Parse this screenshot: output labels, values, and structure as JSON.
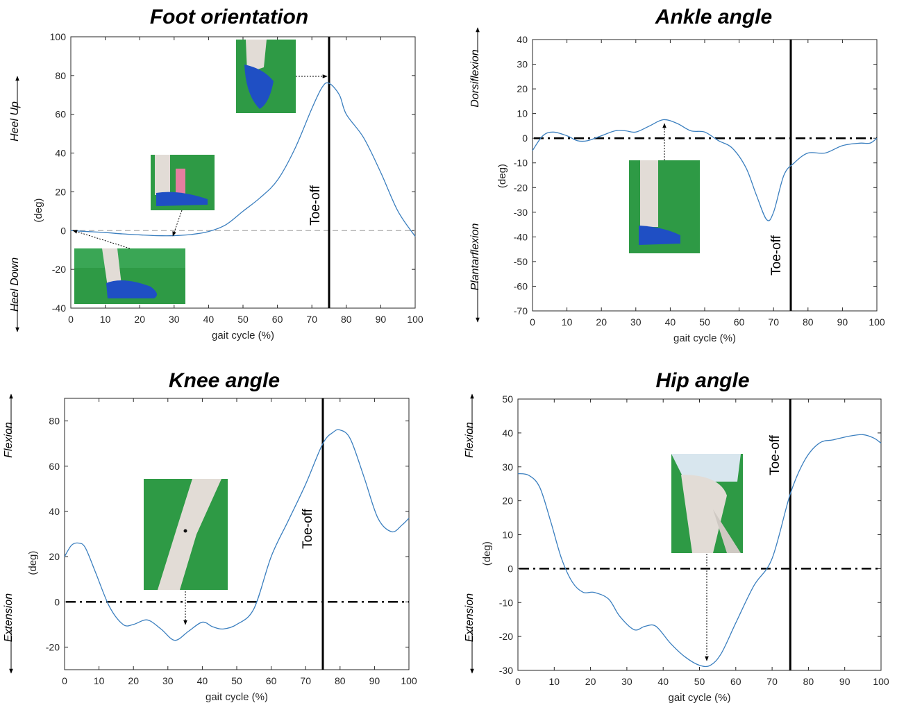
{
  "colors": {
    "curve": "#3B7FBF",
    "photo_green": "#2e9a45",
    "shoe_blue": "#1f4fc4",
    "skin": "#e2dcd6"
  },
  "chart_data": [
    {
      "type": "line",
      "title": "Foot orientation",
      "xlabel": "gait cycle (%)",
      "ylabel": "(deg)",
      "xlim": [
        0,
        100
      ],
      "ylim": [
        -40,
        100
      ],
      "xticks": [
        "0",
        "10",
        "20",
        "30",
        "40",
        "50",
        "60",
        "70",
        "80",
        "90",
        "100"
      ],
      "yticks": [
        "-40",
        "-20",
        "0",
        "20",
        "40",
        "60",
        "80",
        "100"
      ],
      "direction_labels": {
        "positive": "Heel Up",
        "negative": "Heel Down"
      },
      "toe_off": {
        "x": 75,
        "label": "Toe-off"
      },
      "zero_line": "dashed",
      "series": [
        {
          "x": [
            0,
            5,
            10,
            15,
            20,
            25,
            30,
            35,
            40,
            45,
            50,
            55,
            60,
            65,
            70,
            73,
            75,
            78,
            80,
            85,
            90,
            95,
            100
          ],
          "y": [
            0,
            -0.5,
            -1,
            -1.7,
            -2.2,
            -2.6,
            -2.6,
            -2,
            -0.5,
            3,
            10,
            17,
            26,
            42,
            63,
            74,
            76,
            70,
            60,
            48,
            30,
            10,
            -3
          ]
        }
      ]
    },
    {
      "type": "line",
      "title": "Ankle angle",
      "xlabel": "gait cycle (%)",
      "ylabel": "(deg)",
      "xlim": [
        0,
        100
      ],
      "ylim": [
        -70,
        40
      ],
      "xticks": [
        "0",
        "10",
        "20",
        "30",
        "40",
        "50",
        "60",
        "70",
        "80",
        "90",
        "100"
      ],
      "yticks": [
        "-70",
        "-60",
        "-50",
        "-40",
        "-30",
        "-20",
        "-10",
        "0",
        "10",
        "20",
        "30",
        "40"
      ],
      "direction_labels": {
        "positive": "Dorsiflexion",
        "negative": "Plantarflexion"
      },
      "toe_off": {
        "x": 75,
        "label": "Toe-off"
      },
      "zero_line": "dashdot",
      "series": [
        {
          "x": [
            0,
            3,
            6,
            10,
            13,
            16,
            20,
            24,
            27,
            30,
            34,
            38,
            42,
            46,
            50,
            54,
            58,
            62,
            65,
            68,
            70,
            73,
            76,
            80,
            85,
            90,
            95,
            98,
            100
          ],
          "y": [
            -5,
            1,
            2.5,
            1,
            -1,
            -1,
            1,
            3,
            3,
            2.5,
            5,
            7.5,
            6,
            3,
            2.5,
            -1,
            -4,
            -12,
            -23,
            -33,
            -30,
            -15,
            -10,
            -6,
            -6,
            -3,
            -2,
            -2,
            0
          ]
        }
      ]
    },
    {
      "type": "line",
      "title": "Knee angle",
      "xlabel": "gait cycle (%)",
      "ylabel": "(deg)",
      "xlim": [
        0,
        100
      ],
      "ylim": [
        -30,
        90
      ],
      "xticks": [
        "0",
        "10",
        "20",
        "30",
        "40",
        "50",
        "60",
        "70",
        "80",
        "90",
        "100"
      ],
      "yticks": [
        "-20",
        "0",
        "20",
        "40",
        "60",
        "80"
      ],
      "direction_labels": {
        "positive": "Flexion",
        "negative": "Extension"
      },
      "toe_off": {
        "x": 75,
        "label": "Toe-off"
      },
      "zero_line": "dashdot",
      "series": [
        {
          "x": [
            0,
            2,
            4,
            6,
            9,
            13,
            17,
            20,
            24,
            28,
            32,
            36,
            40,
            43,
            46,
            50,
            55,
            60,
            65,
            70,
            75,
            78,
            80,
            83,
            87,
            91,
            95,
            98,
            100
          ],
          "y": [
            20,
            25,
            26,
            24,
            13,
            -2,
            -10,
            -10,
            -8,
            -12,
            -17,
            -13,
            -9,
            -11,
            -12,
            -10,
            -3,
            20,
            36,
            52,
            70,
            75,
            76,
            72,
            55,
            37,
            31,
            34,
            37
          ]
        }
      ]
    },
    {
      "type": "line",
      "title": "Hip angle",
      "xlabel": "gait cycle (%)",
      "ylabel": "(deg)",
      "xlim": [
        0,
        100
      ],
      "ylim": [
        -30,
        50
      ],
      "xticks": [
        "0",
        "10",
        "20",
        "30",
        "40",
        "50",
        "60",
        "70",
        "80",
        "90",
        "100"
      ],
      "yticks": [
        "-30",
        "-20",
        "-10",
        "0",
        "10",
        "20",
        "30",
        "40",
        "50"
      ],
      "direction_labels": {
        "positive": "Flexion",
        "negative": "Extension"
      },
      "toe_off": {
        "x": 75,
        "label": "Toe-off"
      },
      "zero_line": "dashdot",
      "series": [
        {
          "x": [
            0,
            3,
            6,
            9,
            12,
            15,
            18,
            21,
            25,
            28,
            32,
            35,
            38,
            42,
            46,
            50,
            53,
            56,
            60,
            65,
            70,
            75,
            79,
            83,
            87,
            91,
            95,
            98,
            100
          ],
          "y": [
            28,
            27.5,
            24,
            14,
            3,
            -4,
            -7,
            -7,
            -9,
            -14,
            -18,
            -17,
            -17,
            -22,
            -26,
            -28.5,
            -28.5,
            -25,
            -16,
            -5,
            3,
            22,
            32,
            37,
            38,
            39,
            39.5,
            38.5,
            37
          ]
        }
      ]
    }
  ]
}
